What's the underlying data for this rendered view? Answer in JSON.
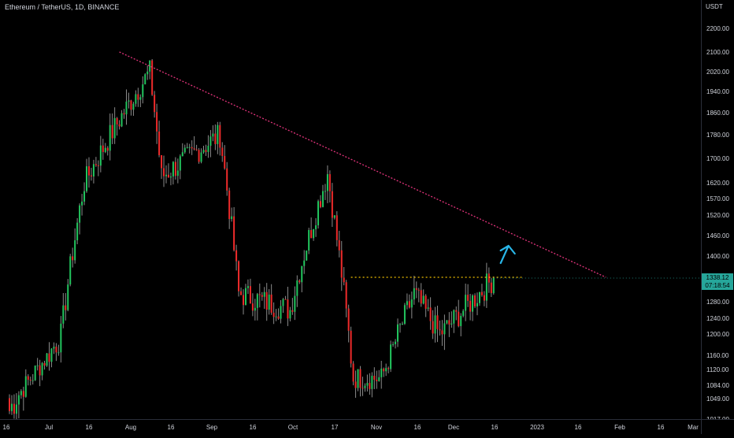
{
  "legend": {
    "symbol_line": "Ethereum / TetherUS, 1D, BINANCE"
  },
  "price_axis": {
    "unit": "USDT",
    "ticks": [
      2200,
      2100,
      2020,
      1940,
      1860,
      1780,
      1700,
      1620,
      1570,
      1520,
      1460,
      1400,
      1340,
      1280,
      1240,
      1200,
      1160,
      1120,
      1084,
      1049,
      1017
    ],
    "tick_labels": [
      "2200.00",
      "2100.00",
      "2020.00",
      "1940.00",
      "1860.00",
      "1780.00",
      "1700.00",
      "1620.00",
      "1570.00",
      "1520.00",
      "1460.00",
      "1400.00",
      "1340.00",
      "1280.00",
      "1240.00",
      "1200.00",
      "1160.00",
      "1120.00",
      "1084.00",
      "1049.00",
      "1017.00"
    ]
  },
  "time_axis": {
    "labels": [
      "16",
      "Jul",
      "16",
      "Aug",
      "16",
      "Sep",
      "16",
      "Oct",
      "17",
      "Nov",
      "16",
      "Dec",
      "16",
      "2023",
      "16",
      "Feb",
      "16",
      "Mar"
    ]
  },
  "last_price": {
    "price": "1338.12",
    "countdown": "07:18:54",
    "color": "#26a69a"
  },
  "colors": {
    "up": "#22c55e",
    "down": "#ef2b2b",
    "trendline": "#e0337a",
    "level": "#f0c000",
    "arrow": "#29b6e8"
  },
  "chart_data": {
    "type": "candlestick",
    "title": "Ethereum / TetherUS, 1D, BINANCE",
    "ylim": [
      1017,
      2200
    ],
    "key_points": [
      {
        "date": "Jun 15",
        "price": 1030
      },
      {
        "date": "Jul 7",
        "price": 1200
      },
      {
        "date": "Jul 17",
        "price": 1620
      },
      {
        "date": "Aug 14",
        "price": 2020
      },
      {
        "date": "Aug 19",
        "price": 1640
      },
      {
        "date": "Sep 13",
        "price": 1780
      },
      {
        "date": "Sep 21",
        "price": 1300
      },
      {
        "date": "Oct 13",
        "price": 1260
      },
      {
        "date": "Oct 29",
        "price": 1650
      },
      {
        "date": "Nov 9",
        "price": 1100
      },
      {
        "date": "Nov 21",
        "price": 1100
      },
      {
        "date": "Dec 5",
        "price": 1300
      },
      {
        "date": "Dec 16",
        "price": 1200
      },
      {
        "date": "Jan 8",
        "price": 1338.12
      }
    ],
    "trendline": {
      "from": {
        "date": "Aug 1",
        "price": 2100
      },
      "to": {
        "date": "Feb 25",
        "price": 1340
      }
    },
    "horizontal_level": {
      "price": 1340,
      "from": "Nov 8",
      "to": "Jan 20"
    }
  }
}
